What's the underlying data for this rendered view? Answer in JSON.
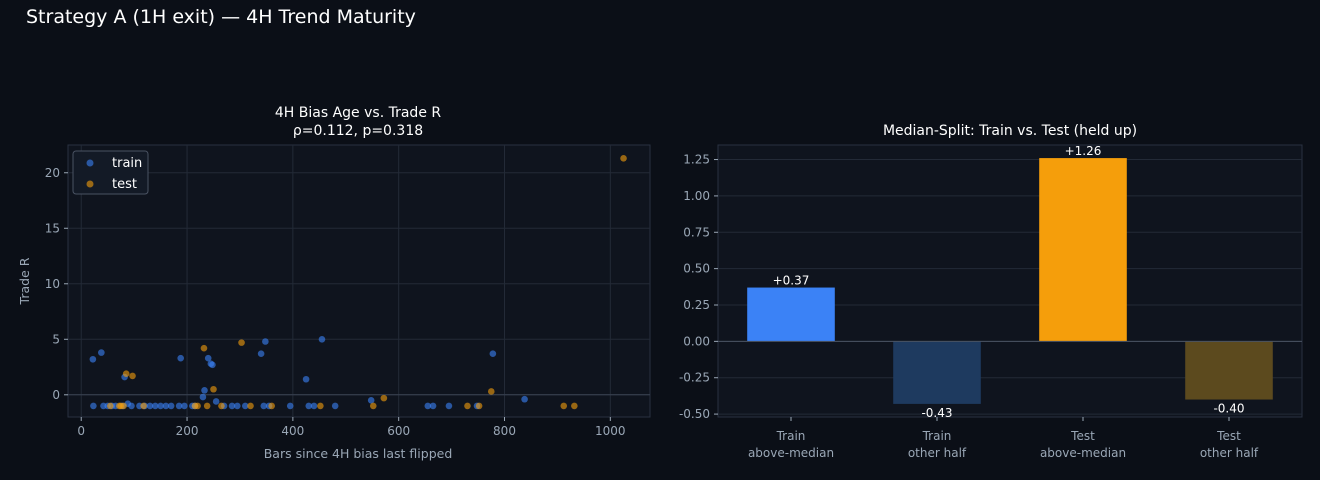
{
  "title": "Strategy A (1H exit) — 4H Trend Maturity",
  "colors": {
    "train": "#3b82f6",
    "test": "#f59e0b",
    "train_other": "#1e3a5f",
    "test_other": "#5c4a1e"
  },
  "chart_data": [
    {
      "type": "scatter",
      "title_line1": "4H Bias Age vs. Trade R",
      "title_line2": "ρ=0.112, p=0.318",
      "xlabel": "Bars since 4H bias last flipped",
      "ylabel": "Trade R",
      "xlim": [
        -25,
        1075
      ],
      "ylim": [
        -2,
        22.5
      ],
      "xticks": [
        0,
        200,
        400,
        600,
        800,
        1000
      ],
      "yticks": [
        0,
        5,
        10,
        15,
        20
      ],
      "grid": true,
      "legend_position": "top-left",
      "series": [
        {
          "name": "train",
          "color": "#3b82f6",
          "points": [
            [
              22,
              3.2
            ],
            [
              23,
              -1
            ],
            [
              38,
              3.8
            ],
            [
              42,
              -1
            ],
            [
              50,
              -1
            ],
            [
              58,
              -1
            ],
            [
              65,
              -1
            ],
            [
              78,
              -1
            ],
            [
              82,
              1.6
            ],
            [
              88,
              -0.8
            ],
            [
              95,
              -1
            ],
            [
              110,
              -1
            ],
            [
              120,
              -1
            ],
            [
              130,
              -1
            ],
            [
              140,
              -1
            ],
            [
              150,
              -1
            ],
            [
              160,
              -1
            ],
            [
              170,
              -1
            ],
            [
              185,
              -1
            ],
            [
              188,
              3.3
            ],
            [
              195,
              -1
            ],
            [
              210,
              -1
            ],
            [
              215,
              -1
            ],
            [
              230,
              -0.2
            ],
            [
              233,
              0.4
            ],
            [
              240,
              3.3
            ],
            [
              245,
              2.8
            ],
            [
              248,
              2.7
            ],
            [
              255,
              -0.6
            ],
            [
              270,
              -1
            ],
            [
              285,
              -1
            ],
            [
              295,
              -1
            ],
            [
              310,
              -1
            ],
            [
              340,
              3.7
            ],
            [
              345,
              -1
            ],
            [
              348,
              4.8
            ],
            [
              355,
              -1
            ],
            [
              395,
              -1
            ],
            [
              425,
              1.4
            ],
            [
              430,
              -1
            ],
            [
              440,
              -1
            ],
            [
              455,
              5.0
            ],
            [
              480,
              -1
            ],
            [
              548,
              -0.5
            ],
            [
              655,
              -1
            ],
            [
              665,
              -1
            ],
            [
              695,
              -1
            ],
            [
              748,
              -1
            ],
            [
              778,
              3.7
            ],
            [
              838,
              -0.4
            ]
          ]
        },
        {
          "name": "test",
          "color": "#f59e0b",
          "points": [
            [
              55,
              -1
            ],
            [
              72,
              -1
            ],
            [
              75,
              -1
            ],
            [
              80,
              -1
            ],
            [
              85,
              1.9
            ],
            [
              97,
              1.7
            ],
            [
              118,
              -1
            ],
            [
              215,
              -1
            ],
            [
              220,
              -1
            ],
            [
              232,
              4.2
            ],
            [
              238,
              -1
            ],
            [
              250,
              0.5
            ],
            [
              265,
              -1
            ],
            [
              303,
              4.7
            ],
            [
              320,
              -1
            ],
            [
              360,
              -1
            ],
            [
              452,
              -1
            ],
            [
              552,
              -1
            ],
            [
              572,
              -0.3
            ],
            [
              730,
              -1
            ],
            [
              752,
              -1
            ],
            [
              775,
              0.3
            ],
            [
              912,
              -1
            ],
            [
              932,
              -1
            ],
            [
              1025,
              21.3
            ]
          ]
        }
      ]
    },
    {
      "type": "bar",
      "title": "Median-Split: Train vs. Test (held up)",
      "categories": [
        [
          "Train",
          "above-median"
        ],
        [
          "Train",
          "other half"
        ],
        [
          "Test",
          "above-median"
        ],
        [
          "Test",
          "other half"
        ]
      ],
      "values": [
        0.37,
        -0.43,
        1.26,
        -0.4
      ],
      "value_labels": [
        "+0.37",
        "-0.43",
        "+1.26",
        "-0.40"
      ],
      "bar_colors": [
        "#3b82f6",
        "#1e3a5f",
        "#f59e0b",
        "#5c4a1e"
      ],
      "ylim": [
        -0.52,
        1.35
      ],
      "yticks": [
        "1.25",
        "1.00",
        "0.75",
        "0.50",
        "0.25",
        "0.00",
        "-0.25",
        "-0.50"
      ],
      "grid": true
    }
  ]
}
